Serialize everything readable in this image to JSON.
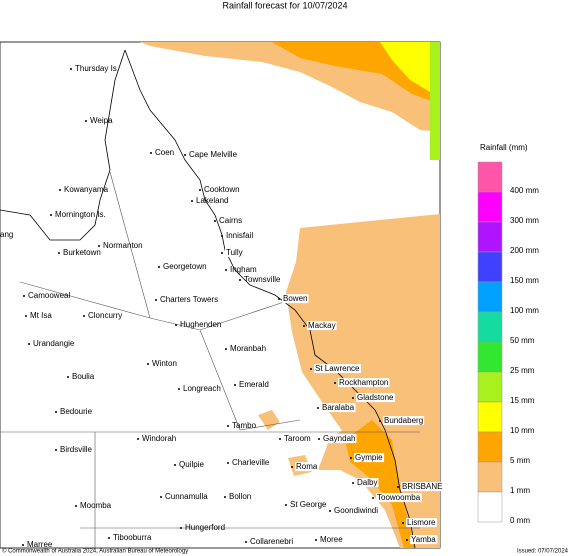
{
  "title": "Rainfall forecast for 10/07/2024",
  "places": [
    "Thursday Is.",
    "Weipa",
    "Coen",
    "Cape Melville",
    "Cooktown",
    "Kowanyama",
    "Lakeland",
    "Mornington Is.",
    "Cairns",
    "Innisfail",
    "Normanton",
    "Burketown",
    "Tully",
    "Georgetown",
    "Ingham",
    "Townsville",
    "Camooweal",
    "Charters Towers",
    "Bowen",
    "Mt Isa",
    "Cloncurry",
    "Hughenden",
    "Mackay",
    "Urandangie",
    "Moranbah",
    "Winton",
    "St Lawrence",
    "Boulia",
    "Rockhampton",
    "Longreach",
    "Emerald",
    "Gladstone",
    "Bedourie",
    "Baralaba",
    "Bundaberg",
    "Tambo",
    "Windorah",
    "Taroom",
    "Gayndah",
    "Birdsville",
    "Gympie",
    "Quilpie",
    "Charleville",
    "Roma",
    "Dalby",
    "BRISBANE",
    "Cunnamulla",
    "Bollon",
    "Toowoomba",
    "Moomba",
    "St George",
    "Goondiwindi",
    "Hungerford",
    "Lismore",
    "Tibooburra",
    "Collarenebri",
    "Moree",
    "Yamba",
    "Marree",
    "ang"
  ],
  "legend": {
    "title": "Rainfall (mm)",
    "items": [
      {
        "label": "400 mm",
        "color": "#ff55a8"
      },
      {
        "label": "300 mm",
        "color": "#ff00ff"
      },
      {
        "label": "200 mm",
        "color": "#b014ff"
      },
      {
        "label": "150 mm",
        "color": "#4040ff"
      },
      {
        "label": "100 mm",
        "color": "#00a0ff"
      },
      {
        "label": "50 mm",
        "color": "#14dca0"
      },
      {
        "label": "25 mm",
        "color": "#32e632"
      },
      {
        "label": "15 mm",
        "color": "#a8f01e"
      },
      {
        "label": "10 mm",
        "color": "#ffff00"
      },
      {
        "label": "5 mm",
        "color": "#ffa500"
      },
      {
        "label": "1 mm",
        "color": "#f9c07a"
      },
      {
        "label": "0 mm",
        "color": "#ffffff"
      }
    ]
  },
  "footer": {
    "copyright": "© Commonwealth of Australia 2024, Australian Bureau of Meteorology",
    "issued": "Issued: 07/07/2024"
  }
}
